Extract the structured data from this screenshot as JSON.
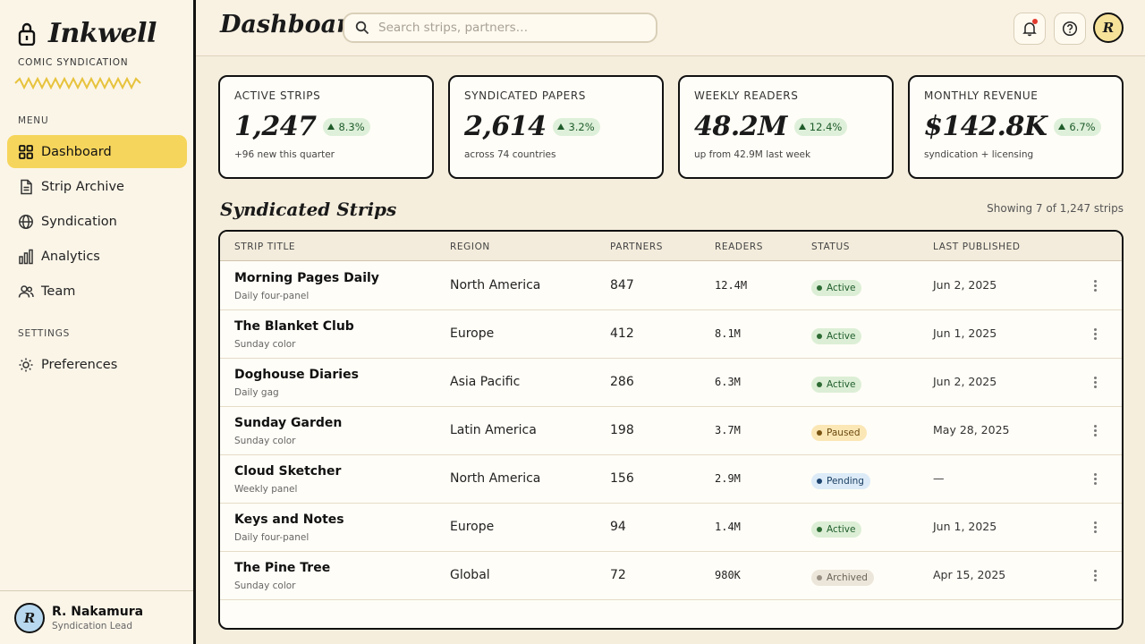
{
  "brand": {
    "name": "Inkwell",
    "subtitle": "COMIC SYNDICATION"
  },
  "sidebar": {
    "menu_label": "MENU",
    "settings_label": "SETTINGS",
    "items": [
      {
        "label": "Dashboard",
        "icon": "grid-icon",
        "active": true
      },
      {
        "label": "Strip Archive",
        "icon": "document-icon",
        "active": false
      },
      {
        "label": "Syndication",
        "icon": "globe-icon",
        "active": false
      },
      {
        "label": "Analytics",
        "icon": "bar-chart-icon",
        "active": false
      },
      {
        "label": "Team",
        "icon": "users-icon",
        "active": false
      }
    ],
    "settings_items": [
      {
        "label": "Preferences",
        "icon": "sun-gear-icon"
      }
    ]
  },
  "user": {
    "name": "R. Nakamura",
    "role": "Syndication Lead",
    "initial": "R"
  },
  "header": {
    "title": "Dashboard",
    "search_placeholder": "Search strips, partners…",
    "avatar_initial": "R"
  },
  "stats": [
    {
      "label": "ACTIVE STRIPS",
      "value": "1,247",
      "delta": "8.3%",
      "sub": "+96 new this quarter"
    },
    {
      "label": "SYNDICATED PAPERS",
      "value": "2,614",
      "delta": "3.2%",
      "sub": "across 74 countries"
    },
    {
      "label": "WEEKLY READERS",
      "value": "48.2M",
      "delta": "12.4%",
      "sub": "up from 42.9M last week"
    },
    {
      "label": "MONTHLY REVENUE",
      "value": "$142.8K",
      "delta": "6.7%",
      "sub": "syndication + licensing"
    }
  ],
  "table": {
    "title": "Syndicated Strips",
    "showing": "Showing 7 of 1,247 strips",
    "columns": [
      "STRIP TITLE",
      "REGION",
      "PARTNERS",
      "READERS",
      "STATUS",
      "LAST PUBLISHED"
    ],
    "rows": [
      {
        "title": "Morning Pages Daily",
        "format": "Daily four-panel",
        "region": "North America",
        "partners": "847",
        "readers": "12.4M",
        "status": "Active",
        "date": "Jun 2, 2025"
      },
      {
        "title": "The Blanket Club",
        "format": "Sunday color",
        "region": "Europe",
        "partners": "412",
        "readers": "8.1M",
        "status": "Active",
        "date": "Jun 1, 2025"
      },
      {
        "title": "Doghouse Diaries",
        "format": "Daily gag",
        "region": "Asia Pacific",
        "partners": "286",
        "readers": "6.3M",
        "status": "Active",
        "date": "Jun 2, 2025"
      },
      {
        "title": "Sunday Garden",
        "format": "Sunday color",
        "region": "Latin America",
        "partners": "198",
        "readers": "3.7M",
        "status": "Paused",
        "date": "May 28, 2025"
      },
      {
        "title": "Cloud Sketcher",
        "format": "Weekly panel",
        "region": "North America",
        "partners": "156",
        "readers": "2.9M",
        "status": "Pending",
        "date": "—"
      },
      {
        "title": "Keys and Notes",
        "format": "Daily four-panel",
        "region": "Europe",
        "partners": "94",
        "readers": "1.4M",
        "status": "Active",
        "date": "Jun 1, 2025"
      },
      {
        "title": "The Pine Tree",
        "format": "Sunday color",
        "region": "Global",
        "partners": "72",
        "readers": "980K",
        "status": "Archived",
        "date": "Apr 15, 2025"
      }
    ]
  },
  "status_colors": {
    "Active": {
      "bg": "#dcefd6",
      "fg": "#1f5c2a",
      "dot": "#2d6b33"
    },
    "Paused": {
      "bg": "#fbe7b5",
      "fg": "#6b4a10",
      "dot": "#7a5412"
    },
    "Pending": {
      "bg": "#dcebf7",
      "fg": "#1c3f63",
      "dot": "#1e4470"
    },
    "Archived": {
      "bg": "#ece6da",
      "fg": "#6a6256",
      "dot": "#9a9184"
    }
  }
}
